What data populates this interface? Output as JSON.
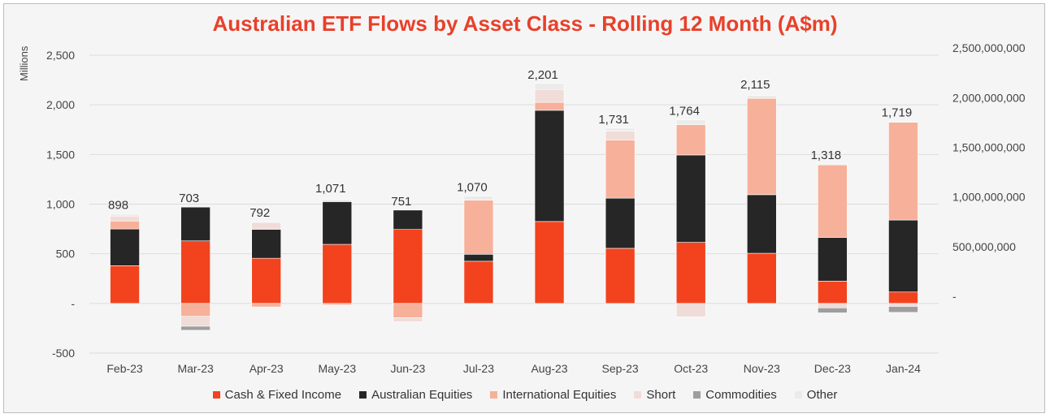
{
  "chart_data": {
    "type": "bar",
    "title": "Australian ETF Flows by Asset Class - Rolling 12 Month (A$m)",
    "ylabel": "Millions",
    "ylim": [
      -500,
      2500
    ],
    "yticks": [
      "-500",
      "-",
      "500",
      "1,000",
      "1,500",
      "2,000",
      "2,500"
    ],
    "y2ticks": [
      "-",
      "500,000,000",
      "1,000,000,000",
      "1,500,000,000",
      "2,000,000,000",
      "2,500,000,000"
    ],
    "categories": [
      "Feb-23",
      "Mar-23",
      "Apr-23",
      "May-23",
      "Jun-23",
      "Jul-23",
      "Aug-23",
      "Sep-23",
      "Oct-23",
      "Nov-23",
      "Dec-23",
      "Jan-24"
    ],
    "totals": [
      "898",
      "703",
      "792",
      "1,071",
      "751",
      "1,070",
      "2,201",
      "1,731",
      "1,764",
      "2,115",
      "1,318",
      "1,719"
    ],
    "series": [
      {
        "name": "Cash & Fixed Income",
        "color": "#f2431e",
        "values": [
          380,
          630,
          455,
          595,
          745,
          425,
          825,
          555,
          615,
          505,
          225,
          115
        ]
      },
      {
        "name": "Australian Equities",
        "color": "#262626",
        "values": [
          370,
          340,
          290,
          430,
          195,
          70,
          1120,
          505,
          880,
          590,
          440,
          725
        ]
      },
      {
        "name": "International Equities",
        "color": "#f7b09a",
        "values": [
          80,
          -130,
          -35,
          -15,
          -145,
          545,
          80,
          585,
          305,
          970,
          730,
          985
        ]
      },
      {
        "name": "Short",
        "color": "#f0dcd8",
        "values": [
          50,
          -100,
          70,
          0,
          -40,
          0,
          130,
          90,
          -135,
          0,
          -45,
          -30
        ]
      },
      {
        "name": "Commodities",
        "color": "#9e9e9e",
        "values": [
          0,
          -40,
          0,
          0,
          0,
          0,
          0,
          0,
          0,
          0,
          -50,
          -60
        ]
      },
      {
        "name": "Other",
        "color": "#ebebeb",
        "values": [
          20,
          0,
          10,
          20,
          0,
          40,
          60,
          30,
          50,
          30,
          10,
          10
        ]
      }
    ]
  }
}
